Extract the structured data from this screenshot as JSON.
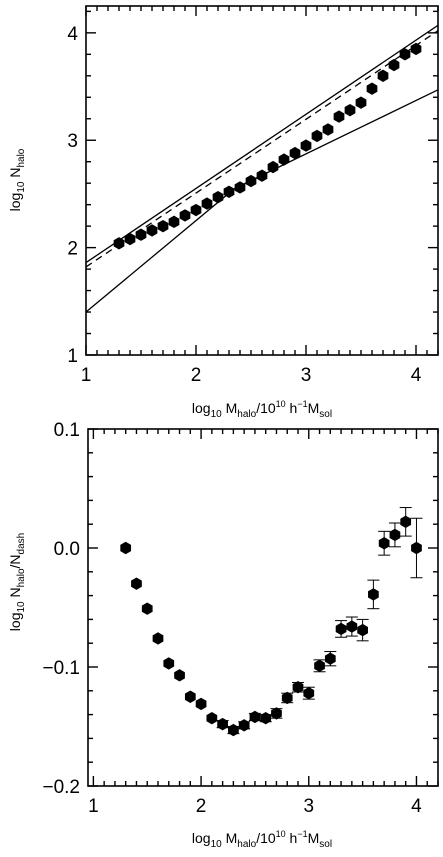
{
  "chart_data": [
    {
      "type": "scatter",
      "xlim": [
        1,
        4.2
      ],
      "ylim": [
        1,
        4.25
      ],
      "x_ticks": [
        1,
        2,
        3,
        4
      ],
      "y_ticks": [
        1,
        2,
        3,
        4
      ],
      "x_tick_labels": [
        "1",
        "2",
        "3",
        "4"
      ],
      "y_tick_labels": [
        "1",
        "2",
        "3",
        "4"
      ],
      "xlabel": {
        "pre": "log",
        "sub1": "10",
        "mid": " M",
        "sub2": "halo",
        "post": "/10",
        "sup1": "10",
        "post2": " h",
        "sup2": "−1",
        "post3": "M",
        "sub3": "sol"
      },
      "ylabel": {
        "pre": "log",
        "sub1": "10",
        "mid": " N",
        "sub2": "halo"
      },
      "points": {
        "x": [
          1.3,
          1.4,
          1.5,
          1.6,
          1.7,
          1.8,
          1.9,
          2.0,
          2.1,
          2.2,
          2.3,
          2.4,
          2.5,
          2.6,
          2.7,
          2.8,
          2.9,
          3.0,
          3.1,
          3.2,
          3.3,
          3.4,
          3.5,
          3.6,
          3.7,
          3.8,
          3.9,
          4.0
        ],
        "y": [
          2.04,
          2.08,
          2.12,
          2.16,
          2.2,
          2.24,
          2.3,
          2.35,
          2.41,
          2.47,
          2.52,
          2.56,
          2.62,
          2.67,
          2.75,
          2.82,
          2.88,
          2.95,
          3.04,
          3.1,
          3.22,
          3.28,
          3.35,
          3.48,
          3.6,
          3.7,
          3.8,
          3.85
        ]
      },
      "lines": [
        {
          "style": "dashed",
          "x": [
            1.0,
            4.2
          ],
          "y": [
            1.82,
            4.02
          ]
        },
        {
          "style": "solid",
          "x": [
            1.0,
            4.2
          ],
          "y": [
            1.86,
            4.07
          ]
        },
        {
          "style": "solid",
          "x": [
            1.0,
            2.35,
            4.2
          ],
          "y": [
            1.4,
            2.55,
            3.47
          ]
        }
      ]
    },
    {
      "type": "scatter",
      "xlim": [
        0.95,
        4.2
      ],
      "ylim": [
        -0.2,
        0.1
      ],
      "x_ticks": [
        1,
        2,
        3,
        4
      ],
      "y_ticks": [
        -0.2,
        -0.1,
        0.0,
        0.1
      ],
      "x_tick_labels": [
        "1",
        "2",
        "3",
        "4"
      ],
      "y_tick_labels": [
        "−0.2",
        "−0.1",
        "0.0",
        "0.1"
      ],
      "xlabel": {
        "pre": "log",
        "sub1": "10",
        "mid": " M",
        "sub2": "halo",
        "post": "/10",
        "sup1": "10",
        "post2": " h",
        "sup2": "−1",
        "post3": "M",
        "sub3": "sol"
      },
      "ylabel": {
        "pre": "log",
        "sub1": "10",
        "mid": " N",
        "sub2": "halo",
        "post": "/N",
        "sub3": "dash"
      },
      "points": {
        "x": [
          1.3,
          1.4,
          1.5,
          1.6,
          1.7,
          1.8,
          1.9,
          2.0,
          2.1,
          2.2,
          2.3,
          2.4,
          2.5,
          2.6,
          2.7,
          2.8,
          2.9,
          3.0,
          3.1,
          3.2,
          3.3,
          3.4,
          3.5,
          3.6,
          3.7,
          3.8,
          3.9,
          4.0
        ],
        "y": [
          0.0,
          -0.03,
          -0.051,
          -0.076,
          -0.097,
          -0.107,
          -0.125,
          -0.131,
          -0.143,
          -0.148,
          -0.153,
          -0.149,
          -0.142,
          -0.143,
          -0.139,
          -0.126,
          -0.117,
          -0.122,
          -0.099,
          -0.093,
          -0.068,
          -0.066,
          -0.069,
          -0.039,
          0.004,
          0.011,
          0.022,
          0.0
        ],
        "err": [
          0.0,
          0.0,
          0.0,
          0.0,
          0.0,
          0.0,
          0.0,
          0.0,
          0.0,
          0.003,
          0.003,
          0.003,
          0.003,
          0.003,
          0.004,
          0.004,
          0.004,
          0.005,
          0.005,
          0.006,
          0.007,
          0.008,
          0.009,
          0.012,
          0.01,
          0.01,
          0.012,
          0.025
        ]
      }
    }
  ]
}
